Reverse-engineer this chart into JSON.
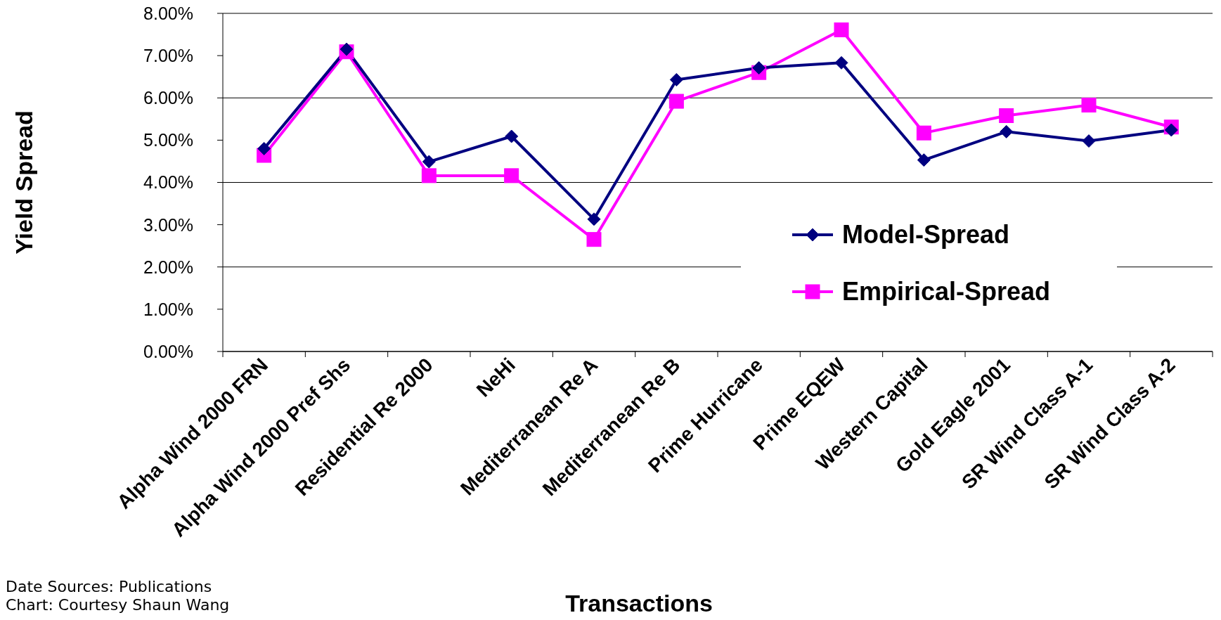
{
  "chart_data": {
    "type": "line",
    "xlabel": "Transactions",
    "ylabel": "Yield Spread",
    "categories": [
      "Alpha Wind 2000 FRN",
      "Alpha Wind 2000 Pref Shs",
      "Residential Re 2000",
      "NeHi",
      "Mediterranean Re A",
      "Mediterranean Re B",
      "Prime Hurricane",
      "Prime EQEW",
      "Western Capital",
      "Gold Eagle 2001",
      "SR Wind Class A-1",
      "SR Wind Class A-2"
    ],
    "series": [
      {
        "name": "Model-Spread",
        "color": "#000080",
        "marker": "diamond",
        "values": [
          4.8,
          7.15,
          4.49,
          5.09,
          3.13,
          6.43,
          6.71,
          6.83,
          4.53,
          5.2,
          4.98,
          5.24
        ]
      },
      {
        "name": "Empirical-Spread",
        "color": "#ff00ff",
        "marker": "square",
        "values": [
          4.64,
          7.09,
          4.16,
          4.16,
          2.65,
          5.92,
          6.6,
          7.61,
          5.17,
          5.58,
          5.83,
          5.31
        ]
      }
    ],
    "ylim": [
      0,
      8
    ],
    "yticks": [
      {
        "value": 0,
        "label": "0.00%"
      },
      {
        "value": 1,
        "label": "1.00%"
      },
      {
        "value": 2,
        "label": "2.00%"
      },
      {
        "value": 3,
        "label": "3.00%"
      },
      {
        "value": 4,
        "label": "4.00%"
      },
      {
        "value": 5,
        "label": "5.00%"
      },
      {
        "value": 6,
        "label": "6.00%"
      },
      {
        "value": 7,
        "label": "7.00%"
      },
      {
        "value": 8,
        "label": "8.00%"
      }
    ],
    "grid": "y",
    "legend": "bottom right",
    "annotations": [
      "Date Sources: Publications",
      "Chart: Courtesy Shaun Wang"
    ]
  }
}
